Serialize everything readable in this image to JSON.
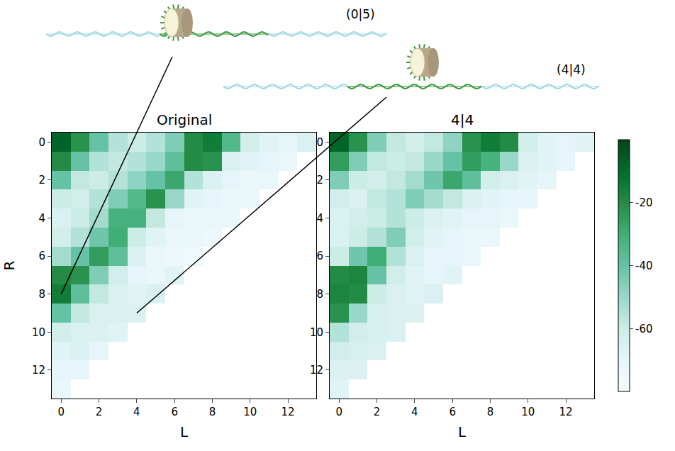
{
  "chart_data": {
    "type": "heatmap",
    "xlim": [
      -0.5,
      13.5
    ],
    "ylim": [
      13.5,
      -0.5
    ],
    "xticks": [
      0,
      2,
      4,
      6,
      8,
      10,
      12
    ],
    "yticks": [
      0,
      2,
      4,
      6,
      8,
      10,
      12
    ],
    "zlim": [
      -80,
      0
    ],
    "colorbar_ticks": [
      -20,
      -40,
      -60
    ],
    "insets": [
      {
        "label": "(0|5)",
        "L": 0,
        "R": 5
      },
      {
        "label": "(4|4)",
        "L": 4,
        "R": 4
      }
    ],
    "panels": [
      {
        "title": "Original",
        "xlabel": "L",
        "ylabel": "R",
        "z": [
          [
            -8,
            -22,
            -40,
            -55,
            -60,
            -55,
            -45,
            -20,
            -15,
            -35,
            -62,
            -68,
            -70,
            -65
          ],
          [
            -20,
            -40,
            -55,
            -58,
            -55,
            -50,
            -38,
            -20,
            -22,
            -65,
            -68,
            -70,
            -72
          ],
          [
            -40,
            -58,
            -60,
            -55,
            -48,
            -40,
            -28,
            -55,
            -65,
            -70,
            -72,
            -72
          ],
          [
            -60,
            -62,
            -55,
            -45,
            -35,
            -22,
            -50,
            -68,
            -70,
            -72,
            -72
          ],
          [
            -65,
            -60,
            -52,
            -32,
            -32,
            -58,
            -70,
            -72,
            -72,
            -73
          ],
          [
            -62,
            -55,
            -42,
            -30,
            -60,
            -68,
            -72,
            -73,
            -74
          ],
          [
            -52,
            -40,
            -25,
            -38,
            -65,
            -72,
            -74,
            -75
          ],
          [
            -20,
            -22,
            -45,
            -62,
            -70,
            -72,
            -68
          ],
          [
            -15,
            -38,
            -58,
            -65,
            -68,
            -66
          ],
          [
            -40,
            -58,
            -65,
            -65,
            -66
          ],
          [
            -62,
            -65,
            -66,
            -68
          ],
          [
            -68,
            -66,
            -70
          ],
          [
            -70,
            -70
          ],
          [
            -72
          ]
        ]
      },
      {
        "title": "4|4",
        "xlabel": "L",
        "z": [
          [
            -8,
            -22,
            -45,
            -58,
            -62,
            -58,
            -48,
            -22,
            -15,
            -20,
            -62,
            -68,
            -70,
            -68
          ],
          [
            -25,
            -45,
            -58,
            -60,
            -58,
            -50,
            -40,
            -25,
            -32,
            -50,
            -66,
            -68,
            -70
          ],
          [
            -45,
            -60,
            -62,
            -58,
            -52,
            -42,
            -28,
            -38,
            -62,
            -66,
            -68,
            -70
          ],
          [
            -62,
            -65,
            -58,
            -55,
            -45,
            -52,
            -58,
            -65,
            -68,
            -70,
            -70
          ],
          [
            -65,
            -62,
            -60,
            -55,
            -60,
            -66,
            -68,
            -70,
            -70,
            -72
          ],
          [
            -65,
            -60,
            -55,
            -45,
            -62,
            -68,
            -70,
            -72,
            -72
          ],
          [
            -60,
            -42,
            -30,
            -55,
            -66,
            -70,
            -70,
            -72
          ],
          [
            -20,
            -18,
            -40,
            -62,
            -68,
            -70,
            -68
          ],
          [
            -18,
            -20,
            -60,
            -66,
            -68,
            -66
          ],
          [
            -22,
            -50,
            -64,
            -66,
            -66
          ],
          [
            -55,
            -62,
            -64,
            -66
          ],
          [
            -62,
            -64,
            -66
          ],
          [
            -66,
            -66
          ],
          [
            -68
          ]
        ]
      }
    ]
  }
}
